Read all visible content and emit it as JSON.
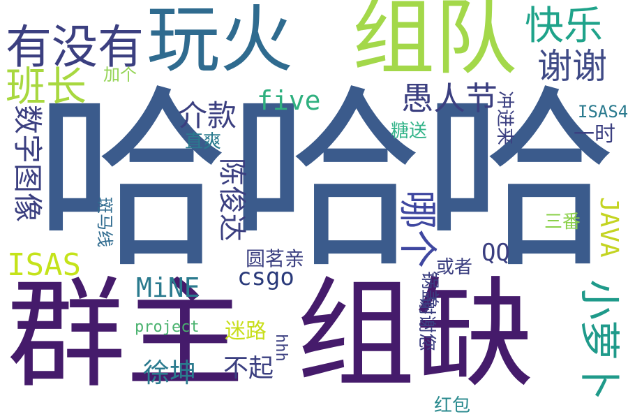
{
  "words": [
    {
      "text": "哈哈哈",
      "color": "#3b5b8c"
    },
    {
      "text": "群主",
      "color": "#451b6b"
    },
    {
      "text": "组缺",
      "color": "#451b6b"
    },
    {
      "text": "组队",
      "color": "#a3d84a"
    },
    {
      "text": "玩火",
      "color": "#2f6b8f"
    },
    {
      "text": "有没有",
      "color": "#3b3f80"
    },
    {
      "text": "快乐",
      "color": "#1fa38a"
    },
    {
      "text": "谢谢",
      "color": "#3f4a86"
    },
    {
      "text": "班长",
      "color": "#a8d83f"
    },
    {
      "text": "加个",
      "color": "#94d455"
    },
    {
      "text": "five",
      "color": "#2fb07f"
    },
    {
      "text": "愚人节",
      "color": "#3b3f80"
    },
    {
      "text": "介款",
      "color": "#3b3f80"
    },
    {
      "text": "ISAS4",
      "color": "#2a7a8e"
    },
    {
      "text": "一时",
      "color": "#3b3f80"
    },
    {
      "text": "冲进来",
      "color": "#3b3f80"
    },
    {
      "text": "直爽",
      "color": "#2a7a8e"
    },
    {
      "text": "糖送",
      "color": "#34b48a"
    },
    {
      "text": "数字图像",
      "color": "#3b3f80"
    },
    {
      "text": "陈俊达",
      "color": "#3b3f80"
    },
    {
      "text": "哪个",
      "color": "#3f47a0"
    },
    {
      "text": "小萝卜",
      "color": "#1f9a8a"
    },
    {
      "text": "斑马线",
      "color": "#2f6b8f"
    },
    {
      "text": "三番",
      "color": "#8ad048"
    },
    {
      "text": "JAVA",
      "color": "#c4d422"
    },
    {
      "text": "QQ",
      "color": "#3b3f80"
    },
    {
      "text": "ISAS",
      "color": "#c4e31a"
    },
    {
      "text": "圆茗亲",
      "color": "#3b3f80"
    },
    {
      "text": "或者",
      "color": "#3b3f80"
    },
    {
      "text": "MiNE",
      "color": "#2a7a8e"
    },
    {
      "text": "csgo",
      "color": "#2a3a7a"
    },
    {
      "text": "锅盖",
      "color": "#3b3f80"
    },
    {
      "text": "project",
      "color": "#49b26e"
    },
    {
      "text": "迷路",
      "color": "#c8de1a"
    },
    {
      "text": "hhh",
      "color": "#3b3f80"
    },
    {
      "text": "谢谢您",
      "color": "#3b3f80"
    },
    {
      "text": "徐坤",
      "color": "#2a7a8e"
    },
    {
      "text": "不起",
      "color": "#3b3f80"
    },
    {
      "text": "红包",
      "color": "#2a8a8e"
    }
  ]
}
